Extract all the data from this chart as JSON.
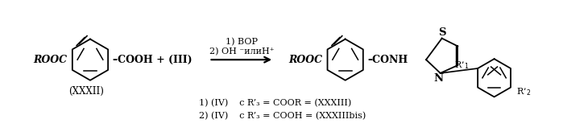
{
  "background_color": "#ffffff",
  "figsize": [
    6.99,
    1.69
  ],
  "dpi": 100,
  "text_color": "#000000",
  "font_size": 8.5,
  "cond1": "1) BOP",
  "cond2": "2) OH ⁻илиH⁺",
  "label_xxxii": "(XXXII)",
  "note1": "1) (IV)    c R’₃ = COOR = (XXXIII)",
  "note2": "2) (IV)    c R’₃ = COOH = (XXXIIIbis)"
}
